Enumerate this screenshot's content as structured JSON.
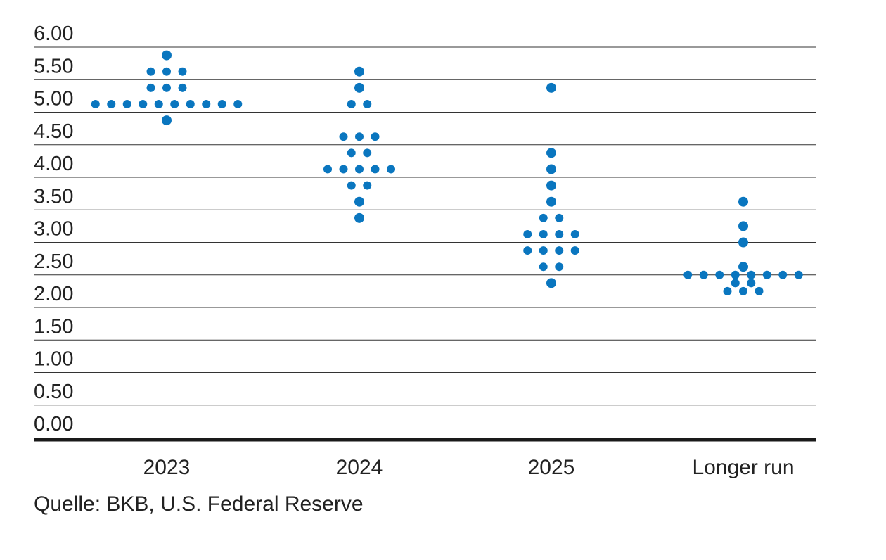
{
  "chart_data": {
    "type": "scatter",
    "title": "",
    "xlabel": "",
    "ylabel": "",
    "ylim": [
      0,
      6
    ],
    "y_ticks": [
      "0.00",
      "0.50",
      "1.00",
      "1.50",
      "2.00",
      "2.50",
      "3.00",
      "3.50",
      "4.00",
      "4.50",
      "5.00",
      "5.50",
      "6.00"
    ],
    "categories": [
      "2023",
      "2024",
      "2025",
      "Longer run"
    ],
    "grid": true,
    "legend": "none",
    "marker_color": "#0a76bf",
    "series": [
      {
        "category": "2023",
        "points": [
          {
            "y": 5.875,
            "count": 1
          },
          {
            "y": 5.625,
            "count": 3
          },
          {
            "y": 5.375,
            "count": 3
          },
          {
            "y": 5.125,
            "count": 10
          },
          {
            "y": 4.875,
            "count": 1
          }
        ]
      },
      {
        "category": "2024",
        "points": [
          {
            "y": 5.625,
            "count": 1
          },
          {
            "y": 5.375,
            "count": 1
          },
          {
            "y": 5.125,
            "count": 2
          },
          {
            "y": 4.625,
            "count": 3
          },
          {
            "y": 4.375,
            "count": 2
          },
          {
            "y": 4.125,
            "count": 5
          },
          {
            "y": 3.875,
            "count": 2
          },
          {
            "y": 3.625,
            "count": 1
          },
          {
            "y": 3.375,
            "count": 1
          }
        ]
      },
      {
        "category": "2025",
        "points": [
          {
            "y": 5.375,
            "count": 1
          },
          {
            "y": 4.375,
            "count": 1
          },
          {
            "y": 4.125,
            "count": 1
          },
          {
            "y": 3.875,
            "count": 1
          },
          {
            "y": 3.625,
            "count": 1
          },
          {
            "y": 3.375,
            "count": 2
          },
          {
            "y": 3.125,
            "count": 4
          },
          {
            "y": 2.875,
            "count": 4
          },
          {
            "y": 2.625,
            "count": 2
          },
          {
            "y": 2.375,
            "count": 1
          }
        ]
      },
      {
        "category": "Longer run",
        "points": [
          {
            "y": 3.625,
            "count": 1
          },
          {
            "y": 3.25,
            "count": 1
          },
          {
            "y": 3.0,
            "count": 1
          },
          {
            "y": 2.625,
            "count": 1
          },
          {
            "y": 2.5,
            "count": 8
          },
          {
            "y": 2.375,
            "count": 2
          },
          {
            "y": 2.25,
            "count": 3
          }
        ]
      }
    ]
  },
  "source": "Quelle: BKB, U.S. Federal Reserve"
}
